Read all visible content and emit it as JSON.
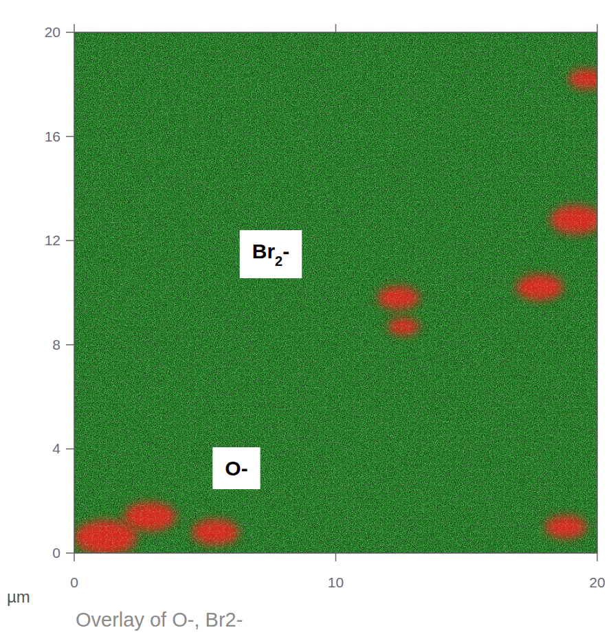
{
  "chart_data": {
    "type": "ion_image",
    "title": "Overlay of O-, Br2-",
    "x_label": "µm",
    "xlim": [
      0,
      20
    ],
    "ylim": [
      0,
      20
    ],
    "xticks": [
      0,
      10,
      20
    ],
    "yticks": [
      0,
      4,
      8,
      12,
      16,
      20
    ],
    "series": [
      {
        "name": "Br2-",
        "color": "#2e9430"
      },
      {
        "name": "O-",
        "color": "#e8231f",
        "x": [
          2.9,
          5.4,
          12.4,
          12.6,
          19.6,
          19.2,
          17.8,
          1.2,
          18.8
        ],
        "y": [
          1.4,
          0.8,
          9.8,
          8.7,
          18.2,
          12.8,
          10.2,
          0.6,
          1.0
        ],
        "size": [
          1.0,
          0.9,
          0.8,
          0.6,
          0.7,
          1.0,
          0.9,
          1.2,
          0.8
        ]
      }
    ]
  }
}
